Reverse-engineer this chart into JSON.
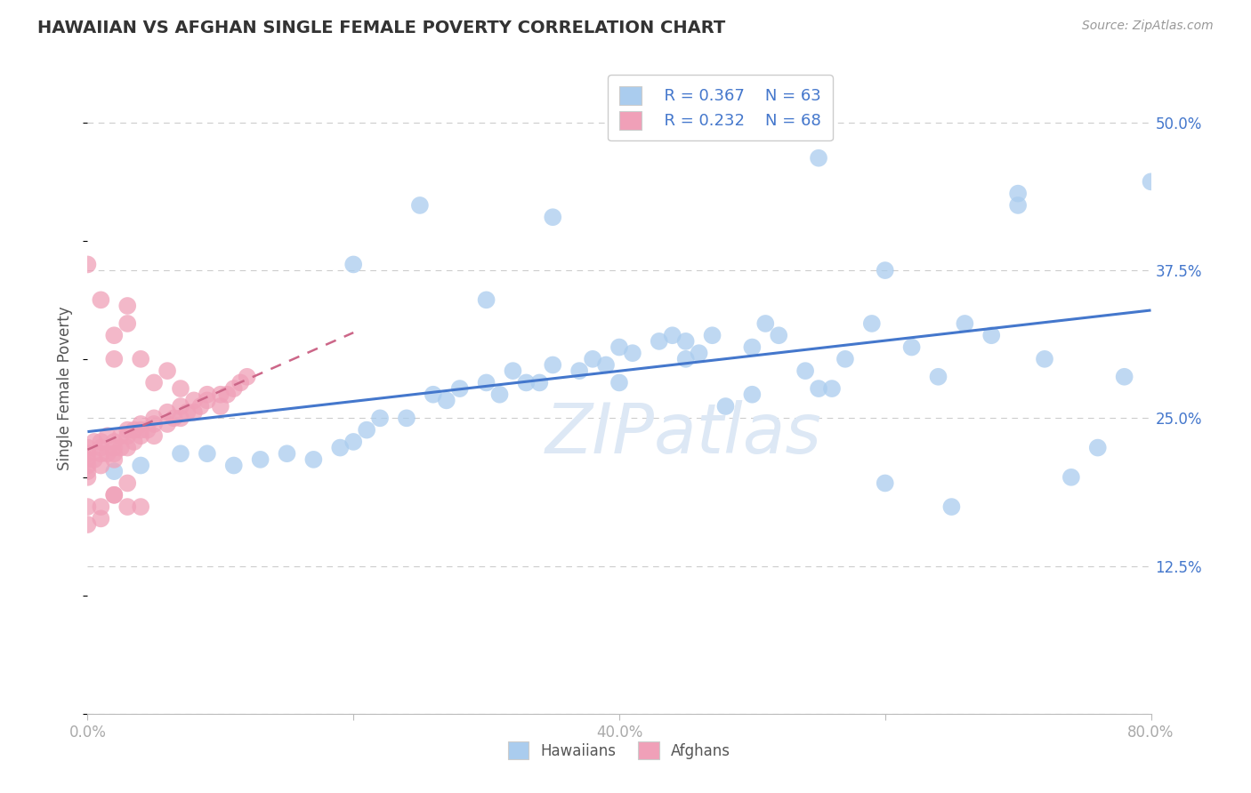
{
  "title": "HAWAIIAN VS AFGHAN SINGLE FEMALE POVERTY CORRELATION CHART",
  "source": "Source: ZipAtlas.com",
  "ylabel": "Single Female Poverty",
  "xlim": [
    0.0,
    0.8
  ],
  "ylim": [
    0.0,
    0.55
  ],
  "yticks": [
    0.0,
    0.125,
    0.25,
    0.375,
    0.5
  ],
  "ytick_labels": [
    "",
    "12.5%",
    "25.0%",
    "37.5%",
    "50.0%"
  ],
  "xticks": [
    0.0,
    0.2,
    0.4,
    0.6,
    0.8
  ],
  "xtick_labels": [
    "0.0%",
    "",
    "40.0%",
    "",
    "80.0%"
  ],
  "hawaiian_color": "#aaccee",
  "afghan_color": "#f0a0b8",
  "trendline_hawaiian_color": "#4477cc",
  "trendline_afghan_color": "#cc6688",
  "legend_R_hawaiian": "R = 0.367",
  "legend_N_hawaiian": "N = 63",
  "legend_R_afghan": "R = 0.232",
  "legend_N_afghan": "N = 68",
  "hawaiian_x": [
    0.02,
    0.04,
    0.07,
    0.09,
    0.11,
    0.13,
    0.15,
    0.17,
    0.19,
    0.2,
    0.21,
    0.22,
    0.24,
    0.26,
    0.27,
    0.28,
    0.3,
    0.31,
    0.32,
    0.33,
    0.34,
    0.35,
    0.37,
    0.38,
    0.39,
    0.4,
    0.41,
    0.43,
    0.44,
    0.45,
    0.46,
    0.47,
    0.48,
    0.5,
    0.51,
    0.52,
    0.54,
    0.56,
    0.57,
    0.59,
    0.6,
    0.62,
    0.64,
    0.66,
    0.68,
    0.7,
    0.72,
    0.74,
    0.76,
    0.78,
    0.25,
    0.3,
    0.35,
    0.4,
    0.2,
    0.45,
    0.5,
    0.55,
    0.6,
    0.65,
    0.7,
    0.55,
    0.8
  ],
  "hawaiian_y": [
    0.205,
    0.21,
    0.22,
    0.22,
    0.21,
    0.215,
    0.22,
    0.215,
    0.225,
    0.23,
    0.24,
    0.25,
    0.25,
    0.27,
    0.265,
    0.275,
    0.28,
    0.27,
    0.29,
    0.28,
    0.28,
    0.295,
    0.29,
    0.3,
    0.295,
    0.31,
    0.305,
    0.315,
    0.32,
    0.315,
    0.305,
    0.32,
    0.26,
    0.31,
    0.33,
    0.32,
    0.29,
    0.275,
    0.3,
    0.33,
    0.375,
    0.31,
    0.285,
    0.33,
    0.32,
    0.44,
    0.3,
    0.2,
    0.225,
    0.285,
    0.43,
    0.35,
    0.42,
    0.28,
    0.38,
    0.3,
    0.27,
    0.275,
    0.195,
    0.175,
    0.43,
    0.47,
    0.45
  ],
  "afghan_x": [
    0.0,
    0.0,
    0.0,
    0.0,
    0.0,
    0.0,
    0.005,
    0.005,
    0.01,
    0.01,
    0.01,
    0.01,
    0.015,
    0.015,
    0.02,
    0.02,
    0.02,
    0.02,
    0.025,
    0.025,
    0.03,
    0.03,
    0.03,
    0.035,
    0.035,
    0.04,
    0.04,
    0.04,
    0.045,
    0.05,
    0.05,
    0.05,
    0.06,
    0.06,
    0.065,
    0.07,
    0.07,
    0.075,
    0.08,
    0.08,
    0.085,
    0.09,
    0.09,
    0.1,
    0.1,
    0.105,
    0.11,
    0.115,
    0.12,
    0.0,
    0.01,
    0.02,
    0.02,
    0.03,
    0.03,
    0.04,
    0.05,
    0.06,
    0.07,
    0.0,
    0.0,
    0.01,
    0.01,
    0.02,
    0.03,
    0.04,
    0.02,
    0.03
  ],
  "afghan_y": [
    0.205,
    0.21,
    0.215,
    0.22,
    0.225,
    0.2,
    0.215,
    0.23,
    0.22,
    0.225,
    0.23,
    0.21,
    0.235,
    0.22,
    0.225,
    0.215,
    0.23,
    0.22,
    0.235,
    0.225,
    0.24,
    0.225,
    0.235,
    0.24,
    0.23,
    0.24,
    0.235,
    0.245,
    0.24,
    0.245,
    0.235,
    0.25,
    0.245,
    0.255,
    0.25,
    0.26,
    0.25,
    0.255,
    0.255,
    0.265,
    0.26,
    0.265,
    0.27,
    0.27,
    0.26,
    0.27,
    0.275,
    0.28,
    0.285,
    0.38,
    0.35,
    0.32,
    0.3,
    0.345,
    0.33,
    0.3,
    0.28,
    0.29,
    0.275,
    0.16,
    0.175,
    0.165,
    0.175,
    0.185,
    0.195,
    0.175,
    0.185,
    0.175
  ]
}
